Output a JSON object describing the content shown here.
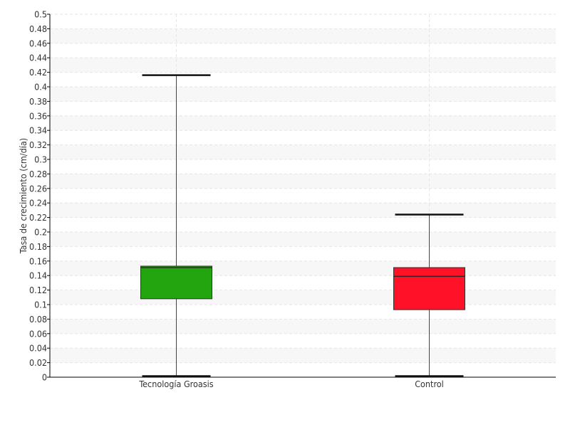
{
  "chart_data": {
    "type": "box",
    "title": "",
    "xlabel": "",
    "ylabel": "Tasa de crecimiento (cm/día)",
    "ylim": [
      0,
      0.5
    ],
    "y_ticks": [
      "0",
      "0.02",
      "0.04",
      "0.06",
      "0.08",
      "0.1",
      "0.12",
      "0.14",
      "0.16",
      "0.18",
      "0.2",
      "0.22",
      "0.24",
      "0.26",
      "0.28",
      "0.3",
      "0.32",
      "0.34",
      "0.36",
      "0.38",
      "0.4",
      "0.42",
      "0.44",
      "0.46",
      "0.48",
      "0.5"
    ],
    "grid": true,
    "legend": "none",
    "categories": [
      "Tecnología Groasis",
      "Control"
    ],
    "boxes": [
      {
        "category": "Tecnología Groasis",
        "min": 0.0,
        "q1": 0.108,
        "median": 0.151,
        "q3": 0.153,
        "max": 0.416,
        "color": "#22a50f"
      },
      {
        "category": "Control",
        "min": 0.0,
        "q1": 0.093,
        "median": 0.139,
        "q3": 0.151,
        "max": 0.224,
        "color": "#ff1128"
      }
    ]
  }
}
